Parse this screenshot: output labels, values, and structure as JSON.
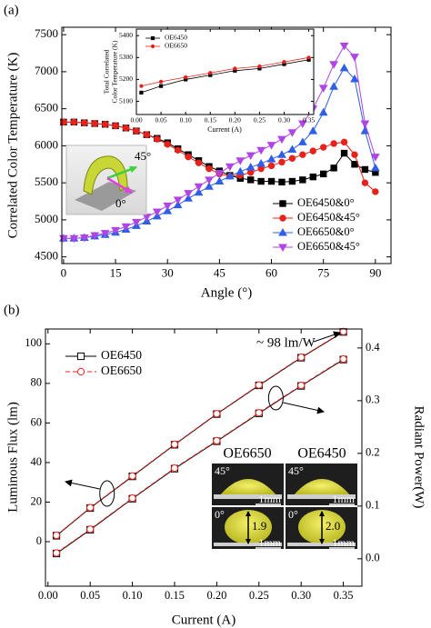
{
  "chart_data": [
    {
      "type": "line",
      "panel_label": "(a)",
      "x_label": "Angle (°)",
      "y_label": "Correlated Color Temperature (K)",
      "inset_image_labels": [
        "45°",
        "0°"
      ],
      "x": [
        0,
        3,
        6,
        9,
        12,
        15,
        18,
        21,
        24,
        27,
        30,
        33,
        36,
        39,
        42,
        45,
        48,
        51,
        54,
        57,
        60,
        63,
        66,
        69,
        72,
        75,
        78,
        81,
        84,
        87,
        90
      ],
      "xlim": [
        -0.5,
        94.5
      ],
      "xticks": [
        0,
        15,
        30,
        45,
        60,
        75,
        90
      ],
      "ylim": [
        4410,
        7600
      ],
      "yticks": [
        4500,
        5000,
        5500,
        6000,
        6500,
        7000,
        7500
      ],
      "series": [
        {
          "name": "OE6450&0°",
          "color": "#000000",
          "marker": "square",
          "filled": true,
          "dash": false,
          "values": [
            6320,
            6320,
            6310,
            6300,
            6290,
            6270,
            6240,
            6200,
            6150,
            6100,
            6040,
            5960,
            5880,
            5800,
            5720,
            5660,
            5600,
            5560,
            5540,
            5520,
            5520,
            5510,
            5520,
            5540,
            5580,
            5620,
            5700,
            5900,
            5750,
            5680,
            5640
          ]
        },
        {
          "name": "OE6450&45°",
          "color": "#e8211b",
          "marker": "circle",
          "filled": true,
          "dash": false,
          "values": [
            6320,
            6320,
            6310,
            6300,
            6290,
            6270,
            6240,
            6200,
            6150,
            6090,
            6020,
            5940,
            5850,
            5770,
            5690,
            5620,
            5590,
            5600,
            5640,
            5690,
            5730,
            5780,
            5830,
            5880,
            5930,
            5980,
            6030,
            6050,
            5880,
            5500,
            5380
          ]
        },
        {
          "name": "OE6650&0°",
          "color": "#2f5fe8",
          "marker": "triangle-up",
          "filled": true,
          "dash": false,
          "values": [
            4750,
            4750,
            4760,
            4780,
            4800,
            4830,
            4870,
            4920,
            4980,
            5050,
            5120,
            5200,
            5290,
            5370,
            5450,
            5520,
            5590,
            5650,
            5710,
            5760,
            5820,
            5880,
            5950,
            6050,
            6200,
            6450,
            6800,
            7050,
            6900,
            6200,
            5700
          ]
        },
        {
          "name": "OE6650&45°",
          "color": "#b045e6",
          "marker": "triangle-down",
          "filled": true,
          "dash": false,
          "values": [
            4750,
            4750,
            4760,
            4790,
            4820,
            4860,
            4910,
            4970,
            5040,
            5110,
            5190,
            5270,
            5360,
            5450,
            5540,
            5630,
            5720,
            5800,
            5870,
            5940,
            6010,
            6090,
            6180,
            6300,
            6500,
            6780,
            7100,
            7350,
            7200,
            6300,
            5850
          ]
        }
      ]
    },
    {
      "type": "line",
      "x_label": "Current (A)",
      "y_label": [
        "Total Correlated",
        "Color Temperature (K)"
      ],
      "x": [
        0.01,
        0.05,
        0.1,
        0.15,
        0.2,
        0.25,
        0.3,
        0.35
      ],
      "xlim": [
        0,
        0.36
      ],
      "xticks": [
        {
          "value": 0,
          "label": "0.00"
        },
        0.05,
        {
          "value": 0.1,
          "label": "0.10"
        },
        0.15,
        {
          "value": 0.2,
          "label": "0.20"
        },
        0.25,
        {
          "value": 0.3,
          "label": "0.30"
        },
        0.35
      ],
      "ylim": [
        5040,
        5430
      ],
      "yticks": [
        5100,
        5200,
        5300,
        5400
      ],
      "series": [
        {
          "name": "OE6450",
          "color": "#000000",
          "marker": "square",
          "filled": true,
          "dash": false,
          "values": [
            5140,
            5170,
            5200,
            5220,
            5240,
            5250,
            5270,
            5290
          ]
        },
        {
          "name": "OE6650",
          "color": "#e8211b",
          "marker": "circle",
          "filled": true,
          "dash": false,
          "values": [
            5170,
            5190,
            5210,
            5230,
            5250,
            5260,
            5280,
            5300
          ]
        }
      ]
    },
    {
      "type": "line",
      "panel_label": "(b)",
      "x_label": "Current (A)",
      "y_label": "Luminous Flux (lm)",
      "y2_label": "Radiant Power(W)",
      "annotation": "~ 98 lm/W",
      "photo": {
        "titles": [
          "OE6650",
          "OE6450"
        ],
        "angles": [
          "45°",
          "0°"
        ],
        "scale": "1mm",
        "heights": [
          "1.9",
          "2.0"
        ]
      },
      "x": [
        0.01,
        0.05,
        0.1,
        0.15,
        0.2,
        0.25,
        0.3,
        0.35
      ],
      "xlim": [
        -0.003,
        0.372
      ],
      "xticks": [
        {
          "value": 0,
          "label": "0.00"
        },
        0.05,
        {
          "value": 0.1,
          "label": "0.10"
        },
        0.15,
        {
          "value": 0.2,
          "label": "0.20"
        },
        0.25,
        {
          "value": 0.3,
          "label": "0.30"
        },
        0.35
      ],
      "ylim": [
        -22.5,
        107.5
      ],
      "yticks": [
        0,
        20,
        40,
        60,
        80,
        100
      ],
      "y2lim": [
        -0.052,
        0.436
      ],
      "y2ticks": [
        {
          "value": 0,
          "label": "0.0"
        },
        0.1,
        0.2,
        0.3,
        0.4
      ],
      "series": [
        {
          "name": "OE6450",
          "color": "#000000",
          "marker": "square",
          "filled": false,
          "dash": false,
          "values": [
            3,
            17,
            33,
            49,
            64.5,
            79,
            93,
            106
          ]
        },
        {
          "name": "OE6650",
          "color": "#e8211b",
          "marker": "circle",
          "filled": false,
          "dash": true,
          "values": [
            3.2,
            17.2,
            33.2,
            49.2,
            64.7,
            79.2,
            93.2,
            106.2
          ]
        },
        {
          "axis": "y2",
          "color": "#000000",
          "marker": "square",
          "filled": false,
          "dash": false,
          "values": [
            0.01,
            0.055,
            0.114,
            0.171,
            0.223,
            0.276,
            0.328,
            0.378
          ]
        },
        {
          "axis": "y2",
          "color": "#e8211b",
          "marker": "circle",
          "filled": false,
          "dash": true,
          "values": [
            0.011,
            0.056,
            0.115,
            0.172,
            0.224,
            0.277,
            0.329,
            0.379
          ]
        }
      ]
    }
  ]
}
